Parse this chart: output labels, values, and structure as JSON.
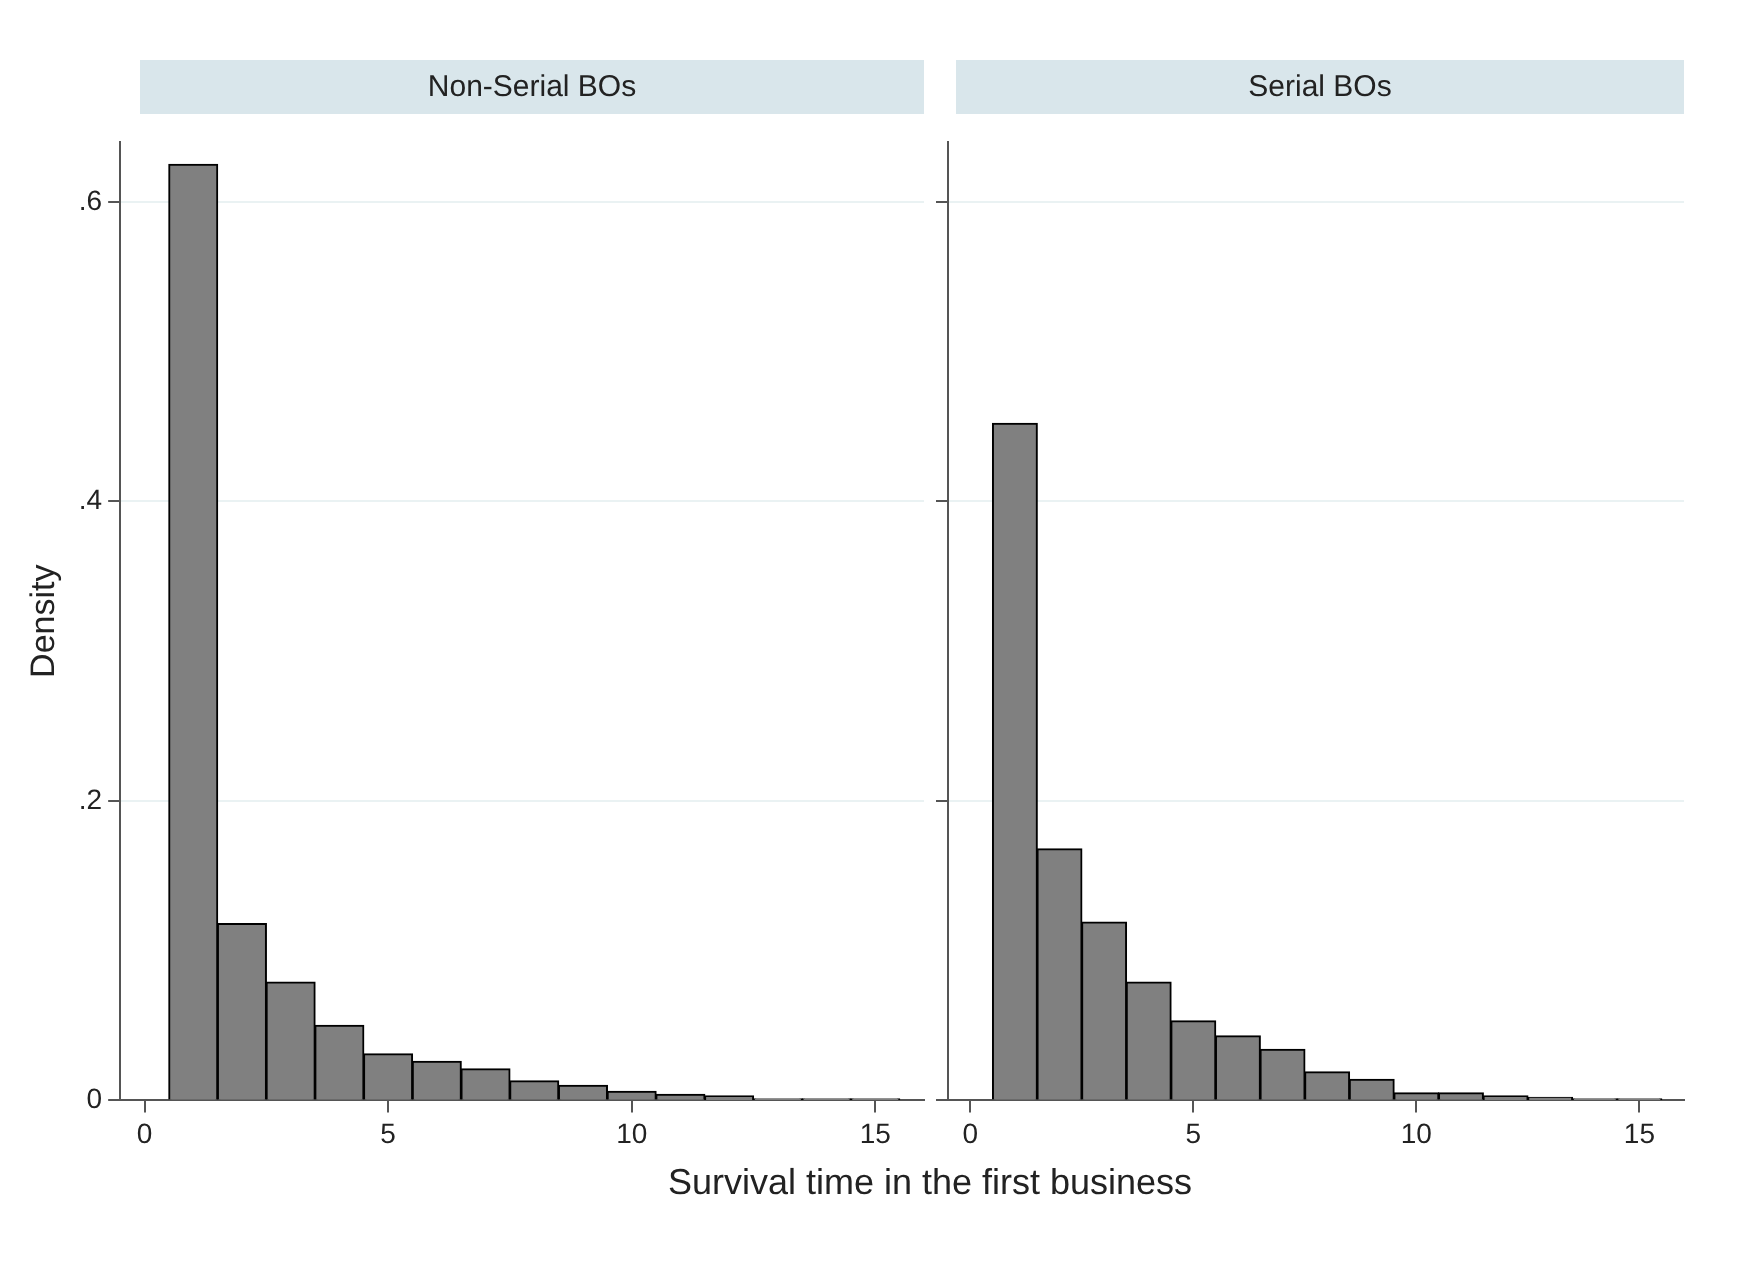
{
  "chart_data": [
    {
      "type": "histogram",
      "title": "Non-Serial BOs",
      "xlabel": "Survival time in the first business",
      "ylabel": "Density",
      "color": "#808080",
      "bins": [
        0.5,
        1.5,
        2.5,
        3.5,
        4.5,
        5.5,
        6.5,
        7.5,
        8.5,
        9.5,
        10.5,
        11.5,
        12.5,
        13.5,
        14.5,
        15.5
      ],
      "values": [
        0.625,
        0.118,
        0.079,
        0.05,
        0.031,
        0.026,
        0.021,
        0.013,
        0.01,
        0.006,
        0.004,
        0.003,
        0.001,
        0.001,
        0.001
      ],
      "xlim": [
        -0.5,
        16
      ],
      "xticks": [
        0,
        5,
        10,
        15
      ],
      "ylim": [
        0,
        0.64
      ],
      "yticks": [
        0,
        {
          "value": 0.2,
          "label": ".2"
        },
        {
          "value": 0.4,
          "label": ".4"
        },
        {
          "value": 0.6,
          "label": ".6"
        }
      ],
      "grid": "y"
    },
    {
      "type": "histogram",
      "title": "Serial BOs",
      "color": "#808080",
      "bins": [
        0.5,
        1.5,
        2.5,
        3.5,
        4.5,
        5.5,
        6.5,
        7.5,
        8.5,
        9.5,
        10.5,
        11.5,
        12.5,
        13.5,
        14.5,
        15.5
      ],
      "values": [
        0.452,
        0.168,
        0.119,
        0.079,
        0.053,
        0.043,
        0.034,
        0.019,
        0.014,
        0.005,
        0.005,
        0.003,
        0.002,
        0.001,
        0.001
      ],
      "xlim": [
        -0.5,
        16
      ],
      "xticks": [
        0,
        5,
        10,
        15
      ],
      "ylim": [
        0,
        0.64
      ],
      "yticks": [
        {
          "value": 0,
          "label": null
        },
        {
          "value": 0.2,
          "label": null
        },
        {
          "value": 0.4,
          "label": null
        },
        {
          "value": 0.6,
          "label": null
        }
      ],
      "grid": "y",
      "tick_labels": "x"
    }
  ]
}
